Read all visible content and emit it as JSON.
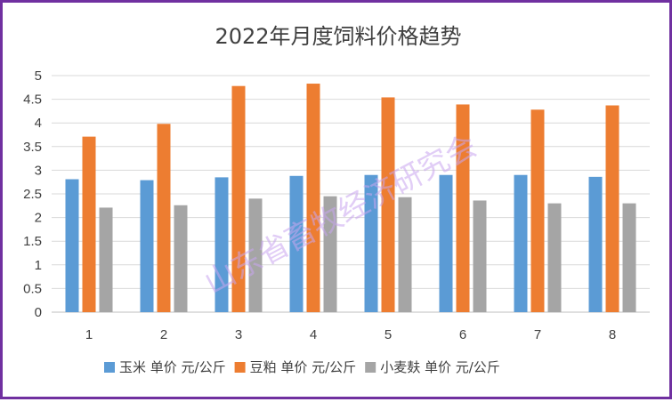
{
  "chart_data": {
    "type": "bar",
    "title": "2022年月度饲料价格趋势",
    "categories": [
      "1",
      "2",
      "3",
      "4",
      "5",
      "6",
      "7",
      "8"
    ],
    "series": [
      {
        "name": "玉米 单价 元/公斤",
        "color": "#5b9bd5",
        "values": [
          2.81,
          2.79,
          2.85,
          2.88,
          2.9,
          2.9,
          2.9,
          2.86
        ]
      },
      {
        "name": "豆粕 单价 元/公斤",
        "color": "#ed7d31",
        "values": [
          3.71,
          3.98,
          4.78,
          4.83,
          4.54,
          4.39,
          4.28,
          4.37
        ]
      },
      {
        "name": "小麦麸 单价 元/公斤",
        "color": "#a5a5a5",
        "values": [
          2.21,
          2.26,
          2.4,
          2.45,
          2.43,
          2.36,
          2.3,
          2.3
        ]
      }
    ],
    "ylim": [
      0,
      5
    ],
    "yticks": [
      "0",
      "0.5",
      "1",
      "1.5",
      "2",
      "2.5",
      "3",
      "3.5",
      "4",
      "4.5",
      "5"
    ],
    "grid": true,
    "legend_position": "bottom",
    "watermark": "山东省畜牧经济研究会"
  }
}
